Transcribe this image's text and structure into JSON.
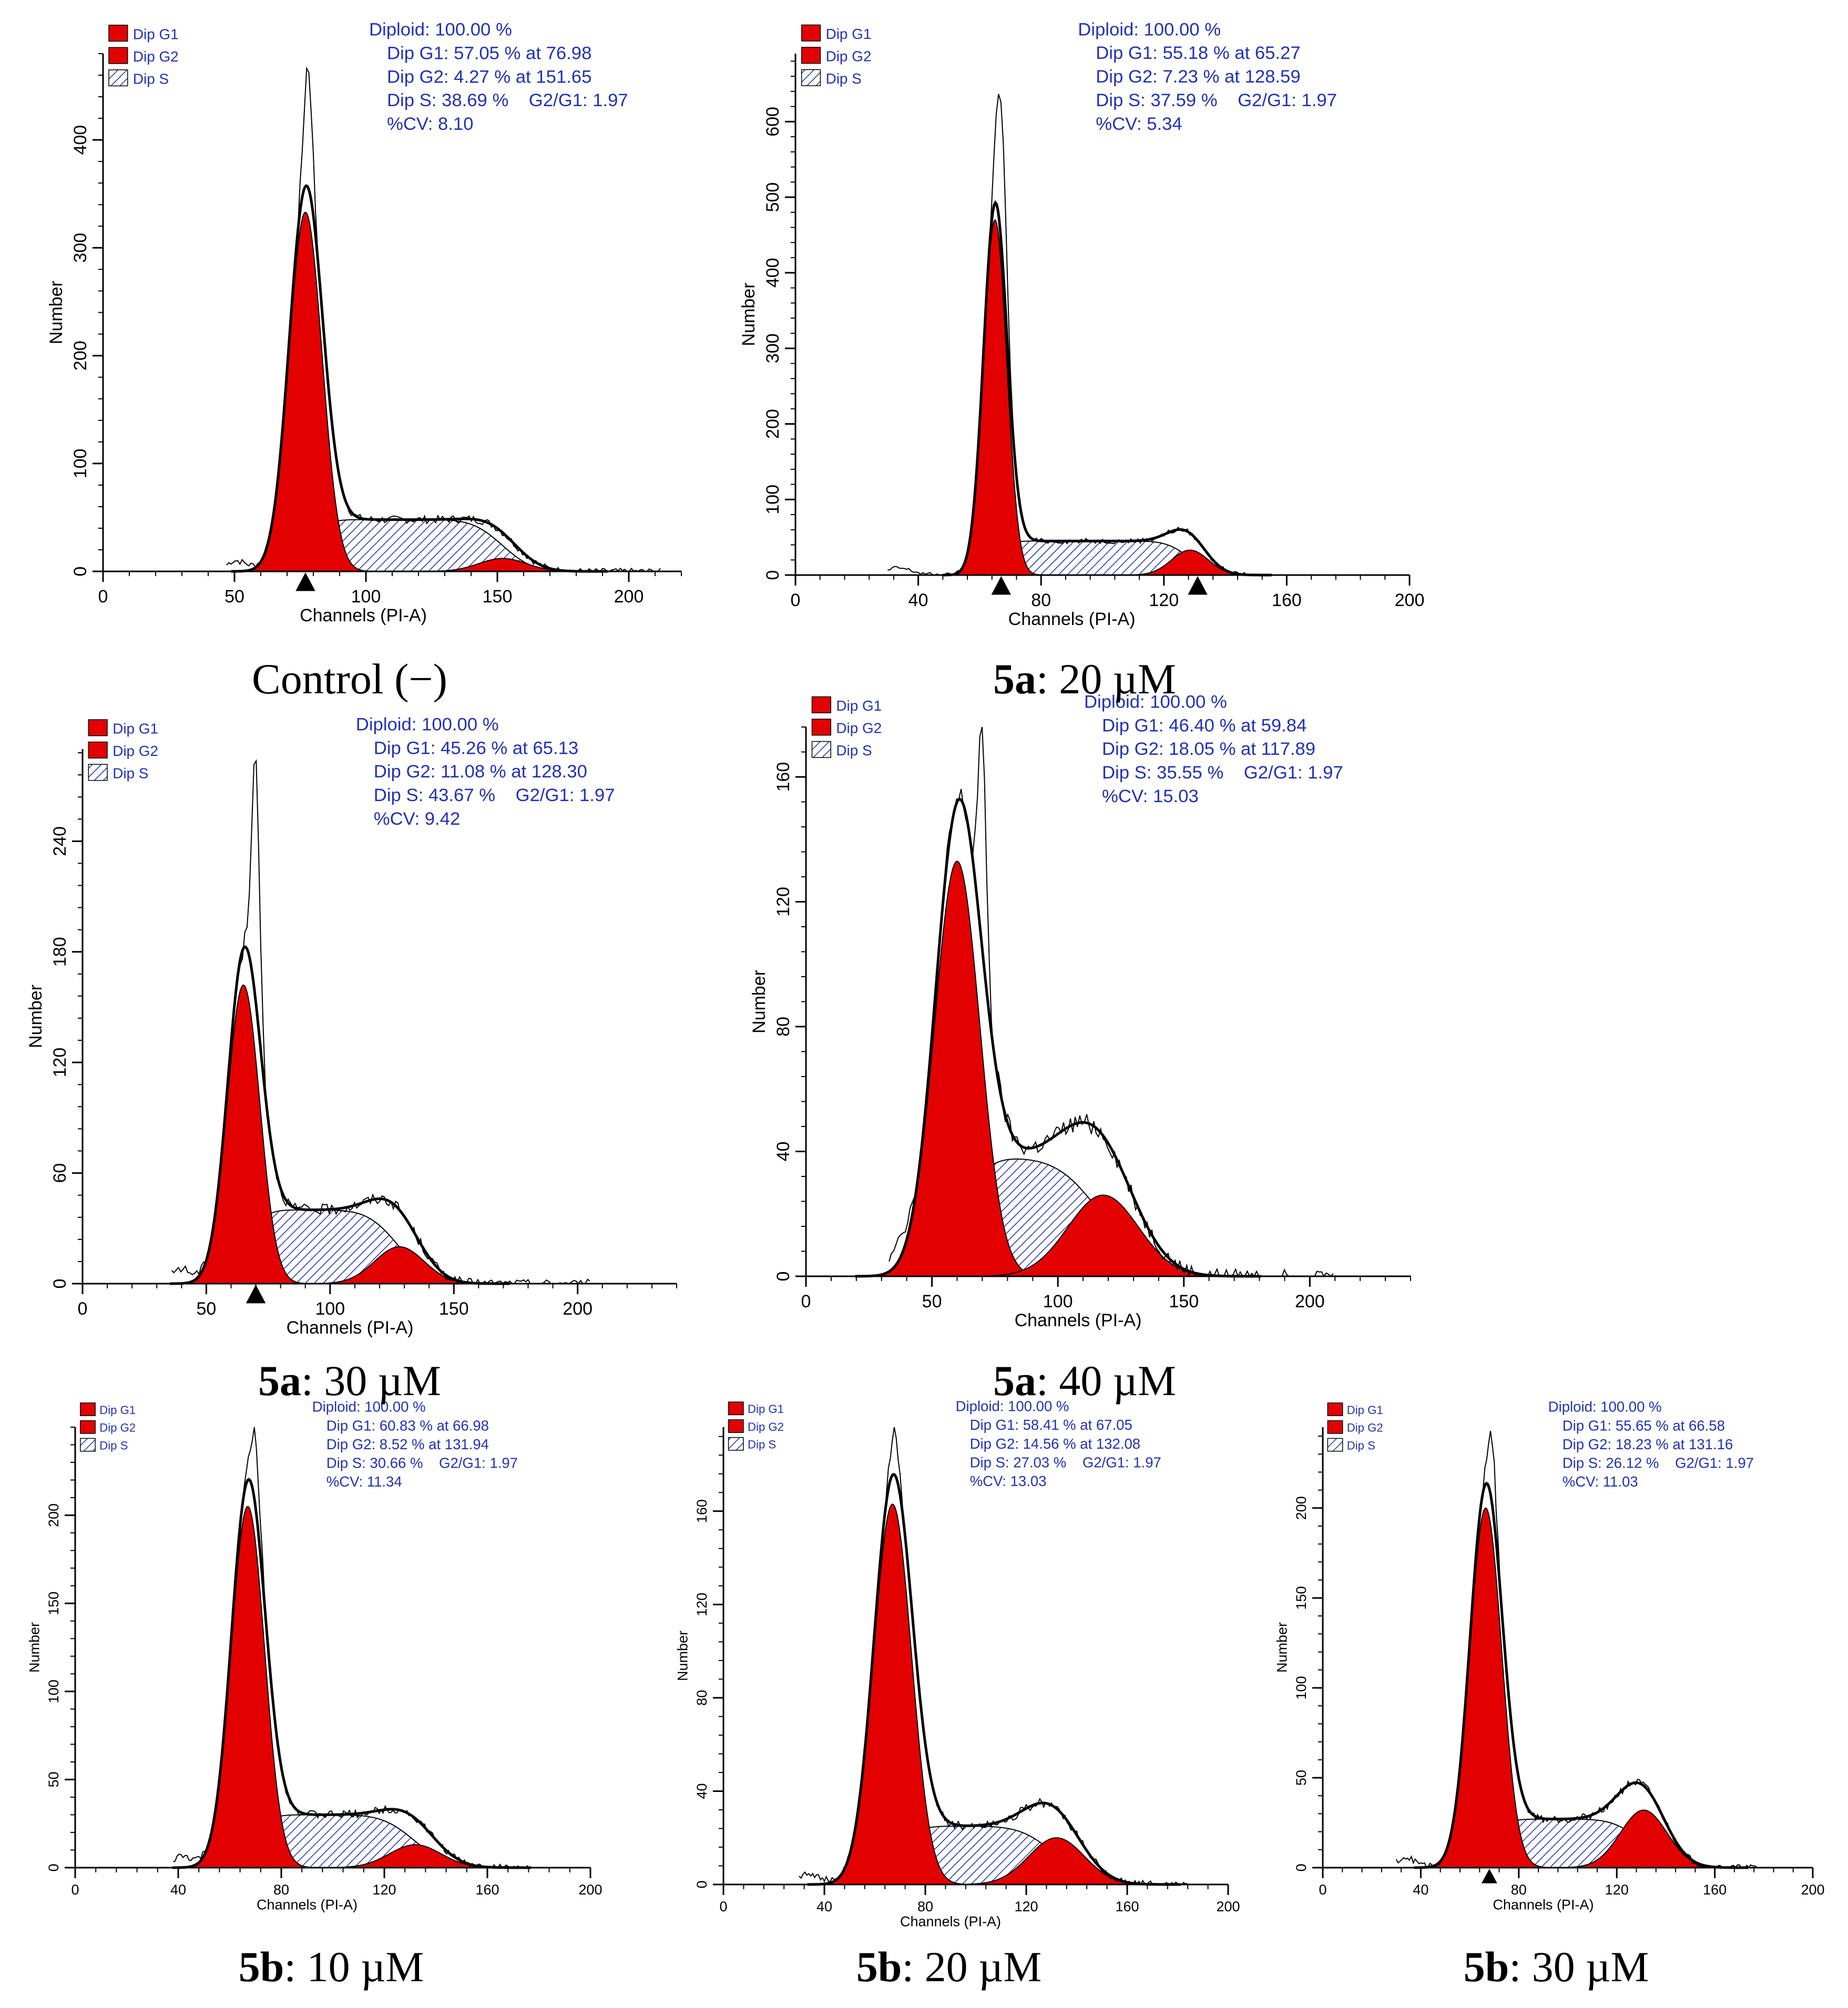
{
  "colors": {
    "g1": "#e30000",
    "g2": "#e30000",
    "s_hatch": "#1c2fa8",
    "stats_text": "#2231b4",
    "axis": "#000000",
    "data_line": "#000000",
    "fit_line": "#000000",
    "background": "#ffffff"
  },
  "chart_data": [
    {
      "id": "control",
      "type": "area",
      "xlabel": "Channels (PI-A)",
      "ylabel": "Number",
      "xlim": [
        0,
        220
      ],
      "xticks": [
        0,
        50,
        100,
        150,
        200
      ],
      "ylim": [
        0,
        480
      ],
      "yticks": [
        0,
        100,
        200,
        300,
        400
      ],
      "legend": [
        {
          "name": "Dip G1",
          "swatch": "red"
        },
        {
          "name": "Dip G2",
          "swatch": "red"
        },
        {
          "name": "Dip S",
          "swatch": "hatch"
        }
      ],
      "stats": [
        "Diploid: 100.00 %",
        "Dip G1: 57.05 % at 76.98",
        "Dip G2: 4.27 % at 151.65",
        "Dip S: 38.69 %    G2/G1: 1.97",
        "%CV: 8.10"
      ],
      "marker_x": [
        77
      ],
      "model": {
        "g1_mean": 77,
        "g1_sd": 6.3,
        "g1_peak": 333,
        "g2_mean": 152,
        "g2_sd": 9,
        "g2_peak": 12,
        "s_height": 48,
        "data_start": 47,
        "data_end": 212,
        "raw_peak_x": 78,
        "raw_peak": 470
      },
      "caption_bold": "",
      "caption_rest": "Control (−)"
    },
    {
      "id": "5a_20",
      "type": "area",
      "xlabel": "Channels (PI-A)",
      "ylabel": "Number",
      "xlim": [
        0,
        200
      ],
      "xticks": [
        0,
        40,
        80,
        120,
        160,
        200
      ],
      "ylim": [
        0,
        690
      ],
      "yticks": [
        0,
        100,
        200,
        300,
        400,
        500,
        600
      ],
      "legend": [
        {
          "name": "Dip G1",
          "swatch": "red"
        },
        {
          "name": "Dip G2",
          "swatch": "red"
        },
        {
          "name": "Dip S",
          "swatch": "hatch"
        }
      ],
      "stats": [
        "Diploid: 100.00 %",
        "Dip G1: 55.18 % at 65.27",
        "Dip G2: 7.23 % at 128.59",
        "Dip S: 37.59 %    G2/G1: 1.97",
        "%CV: 5.34"
      ],
      "marker_x": [
        67,
        131
      ],
      "model": {
        "g1_mean": 65,
        "g1_sd": 3.8,
        "g1_peak": 470,
        "g2_mean": 128.5,
        "g2_sd": 6,
        "g2_peak": 33,
        "s_height": 45,
        "data_start": 30,
        "data_end": 148,
        "raw_peak_x": 67,
        "raw_peak": 625
      },
      "caption_bold": "5a",
      "caption_rest": ": 20 µM"
    },
    {
      "id": "5a_30",
      "type": "area",
      "xlabel": "Channels (PI-A)",
      "ylabel": "Number",
      "xlim": [
        0,
        240
      ],
      "xticks": [
        0,
        50,
        100,
        150,
        200
      ],
      "ylim": [
        0,
        290
      ],
      "yticks": [
        0,
        60,
        120,
        180,
        240
      ],
      "legend": [
        {
          "name": "Dip G1",
          "swatch": "red"
        },
        {
          "name": "Dip G2",
          "swatch": "red"
        },
        {
          "name": "Dip S",
          "swatch": "hatch"
        }
      ],
      "stats": [
        "Diploid: 100.00 %",
        "Dip G1: 45.26 % at 65.13",
        "Dip G2: 11.08 % at 128.30",
        "Dip S: 43.67 %    G2/G1: 1.97",
        "%CV: 9.42"
      ],
      "marker_x": [
        70
      ],
      "model": {
        "g1_mean": 65,
        "g1_sd": 6.6,
        "g1_peak": 162,
        "g2_mean": 128,
        "g2_sd": 10,
        "g2_peak": 20,
        "s_height": 40,
        "data_start": 36,
        "data_end": 205,
        "raw_peak_x": 70,
        "raw_peak": 285
      },
      "caption_bold": "5a",
      "caption_rest": ": 30 µM"
    },
    {
      "id": "5a_40",
      "type": "area",
      "xlabel": "Channels (PI-A)",
      "ylabel": "Number",
      "xlim": [
        0,
        240
      ],
      "xticks": [
        0,
        50,
        100,
        150,
        200
      ],
      "ylim": [
        0,
        176
      ],
      "yticks": [
        0,
        40,
        80,
        120,
        160
      ],
      "legend": [
        {
          "name": "Dip G1",
          "swatch": "red"
        },
        {
          "name": "Dip G2",
          "swatch": "red"
        },
        {
          "name": "Dip S",
          "swatch": "hatch"
        }
      ],
      "stats": [
        "Diploid: 100.00 %",
        "Dip G1: 46.40 % at 59.84",
        "Dip G2: 18.05 % at 117.89",
        "Dip S: 35.55 %    G2/G1: 1.97",
        "%CV: 15.03"
      ],
      "marker_x": [],
      "model": {
        "g1_mean": 60,
        "g1_sd": 9,
        "g1_peak": 133,
        "g2_mean": 118,
        "g2_sd": 14,
        "g2_peak": 26,
        "s_height": 38,
        "data_start": 33,
        "data_end": 210,
        "raw_peak_x": 70,
        "raw_peak": 175
      },
      "caption_bold": "5a",
      "caption_rest": ": 40 µM"
    },
    {
      "id": "5b_10",
      "type": "area",
      "xlabel": "Channels (PI-A)",
      "ylabel": "Number",
      "xlim": [
        0,
        200
      ],
      "xticks": [
        0,
        40,
        80,
        120,
        160,
        200
      ],
      "ylim": [
        0,
        250
      ],
      "yticks": [
        0,
        50,
        100,
        150,
        200
      ],
      "legend": [
        {
          "name": "Dip G1",
          "swatch": "red"
        },
        {
          "name": "Dip G2",
          "swatch": "red"
        },
        {
          "name": "Dip S",
          "swatch": "hatch"
        }
      ],
      "stats": [
        "Diploid: 100.00 %",
        "Dip G1: 60.83 % at 66.98",
        "Dip G2: 8.52 % at 131.94",
        "Dip S: 30.66 %    G2/G1: 1.97",
        "%CV: 11.34"
      ],
      "marker_x": [],
      "model": {
        "g1_mean": 67,
        "g1_sd": 6.5,
        "g1_peak": 205,
        "g2_mean": 132,
        "g2_sd": 10,
        "g2_peak": 13,
        "s_height": 30,
        "data_start": 38,
        "data_end": 176,
        "raw_peak_x": 70,
        "raw_peak": 245
      },
      "caption_bold": "5b",
      "caption_rest": ": 10 µM"
    },
    {
      "id": "5b_20",
      "type": "area",
      "xlabel": "Channels (PI-A)",
      "ylabel": "Number",
      "xlim": [
        0,
        200
      ],
      "xticks": [
        0,
        40,
        80,
        120,
        160,
        200
      ],
      "ylim": [
        0,
        196
      ],
      "yticks": [
        0,
        40,
        80,
        120,
        160
      ],
      "legend": [
        {
          "name": "Dip G1",
          "swatch": "red"
        },
        {
          "name": "Dip G2",
          "swatch": "red"
        },
        {
          "name": "Dip S",
          "swatch": "hatch"
        }
      ],
      "stats": [
        "Diploid: 100.00 %",
        "Dip G1: 58.41 % at 67.05",
        "Dip G2: 14.56 % at 132.08",
        "Dip S: 27.03 %    G2/G1: 1.97",
        "%CV: 13.03"
      ],
      "marker_x": [],
      "model": {
        "g1_mean": 67,
        "g1_sd": 7.5,
        "g1_peak": 163,
        "g2_mean": 132,
        "g2_sd": 11,
        "g2_peak": 20,
        "s_height": 25,
        "data_start": 30,
        "data_end": 184,
        "raw_peak_x": 68,
        "raw_peak": 194
      },
      "caption_bold": "5b",
      "caption_rest": ": 20 µM"
    },
    {
      "id": "5b_30",
      "type": "area",
      "xlabel": "Channels (PI-A)",
      "ylabel": "Number",
      "xlim": [
        0,
        200
      ],
      "xticks": [
        0,
        40,
        80,
        120,
        160,
        200
      ],
      "ylim": [
        0,
        245
      ],
      "yticks": [
        0,
        50,
        100,
        150,
        200
      ],
      "legend": [
        {
          "name": "Dip G1",
          "swatch": "red"
        },
        {
          "name": "Dip G2",
          "swatch": "red"
        },
        {
          "name": "Dip S",
          "swatch": "hatch"
        }
      ],
      "stats": [
        "Diploid: 100.00 %",
        "Dip G1: 55.65 % at 66.58",
        "Dip G2: 18.23 % at 131.16",
        "Dip S: 26.12 %    G2/G1: 1.97",
        "%CV: 11.03"
      ],
      "marker_x": [
        68
      ],
      "model": {
        "g1_mean": 66.5,
        "g1_sd": 6.5,
        "g1_peak": 200,
        "g2_mean": 131,
        "g2_sd": 9.5,
        "g2_peak": 32,
        "s_height": 27,
        "data_start": 30,
        "data_end": 178,
        "raw_peak_x": 69,
        "raw_peak": 240
      },
      "caption_bold": "5b",
      "caption_rest": ": 30 µM"
    }
  ]
}
